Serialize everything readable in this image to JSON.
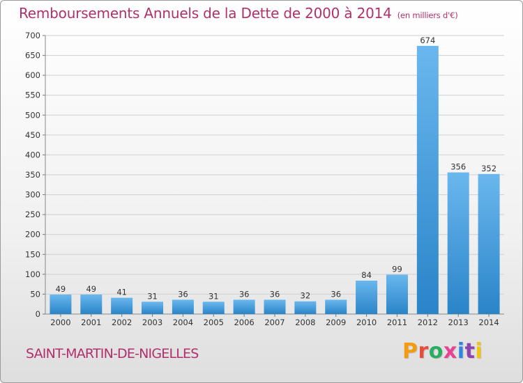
{
  "header": {
    "title": "Remboursements Annuels de la Dette de 2000 à 2014",
    "unit": "(en milliers d'€)"
  },
  "footer": {
    "commune": "SAINT-MARTIN-DE-NIGELLES",
    "logo_text": "Proxiti",
    "logo_colors": [
      "#f39c12",
      "#e74c3c",
      "#27ae60",
      "#e84393",
      "#2e86de",
      "#8e44ad",
      "#f1c40f"
    ]
  },
  "colors": {
    "bar_light": "#6ab7ee",
    "bar_dark": "#2a84c8",
    "title": "#b0306c",
    "grid": "#cfcfcf"
  },
  "chart_data": {
    "type": "bar",
    "title": "Remboursements Annuels de la Dette de 2000 à 2014",
    "categories": [
      "2000",
      "2001",
      "2002",
      "2003",
      "2004",
      "2005",
      "2006",
      "2007",
      "2008",
      "2009",
      "2010",
      "2011",
      "2012",
      "2013",
      "2014"
    ],
    "values": [
      49,
      49,
      41,
      31,
      36,
      31,
      36,
      36,
      32,
      36,
      84,
      99,
      674,
      356,
      352
    ],
    "ylim": [
      0,
      700
    ],
    "yticks": [
      0,
      50,
      100,
      150,
      200,
      250,
      300,
      350,
      400,
      450,
      500,
      550,
      600,
      650,
      700
    ],
    "grid": true,
    "xlabel": "",
    "ylabel": ""
  }
}
